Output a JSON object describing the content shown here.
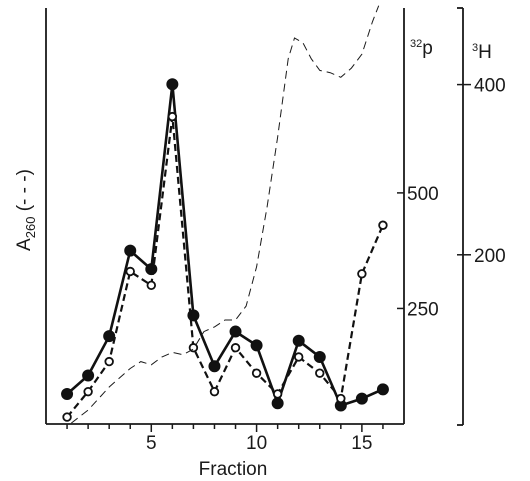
{
  "chart_data": {
    "type": "line",
    "xlabel": "Fraction",
    "ylabel_left": {
      "main": "A",
      "sub": "260",
      "suffix": " (- - -)"
    },
    "ylabel_mid": {
      "sup": "32",
      "main": "p"
    },
    "ylabel_right": {
      "sup": "3",
      "main": "H"
    },
    "x_ticks": [
      5,
      10,
      15
    ],
    "mid_ticks": [
      250,
      500
    ],
    "right_ticks": [
      200,
      400
    ],
    "xlim": [
      0,
      17
    ],
    "mid_ylim": [
      0,
      900
    ],
    "right_ylim": [
      0,
      490
    ],
    "series": [
      {
        "axis": "mid",
        "style": "solid-filled",
        "x": [
          1,
          2,
          3,
          4,
          5,
          6,
          7,
          8,
          9,
          10,
          11,
          12,
          13,
          14,
          15,
          16
        ],
        "y": [
          65,
          105,
          190,
          375,
          335,
          735,
          235,
          125,
          200,
          170,
          45,
          180,
          145,
          40,
          55,
          75
        ]
      },
      {
        "axis": "mid",
        "style": "dashed-open",
        "x": [
          1,
          2,
          3,
          4,
          5,
          6,
          7,
          8,
          9,
          10,
          11,
          12,
          13,
          14,
          15,
          16
        ],
        "y": [
          15,
          70,
          135,
          330,
          300,
          665,
          165,
          70,
          165,
          110,
          65,
          145,
          110,
          55,
          325,
          430
        ]
      },
      {
        "axis": "none",
        "style": "thin-dashed",
        "x": [
          1.2,
          2,
          3,
          4,
          4.5,
          5,
          5.5,
          6,
          6.5,
          7,
          7.5,
          8,
          8.5,
          9,
          9.5,
          10,
          10.5,
          11,
          11.5,
          11.8,
          12.2,
          12.6,
          13,
          13.5,
          14,
          14.5,
          15,
          15.5,
          15.8
        ],
        "y": [
          2,
          30,
          80,
          120,
          135,
          128,
          145,
          155,
          150,
          162,
          200,
          210,
          225,
          225,
          255,
          340,
          470,
          620,
          790,
          835,
          825,
          790,
          765,
          760,
          750,
          770,
          800,
          870,
          905
        ]
      }
    ]
  }
}
